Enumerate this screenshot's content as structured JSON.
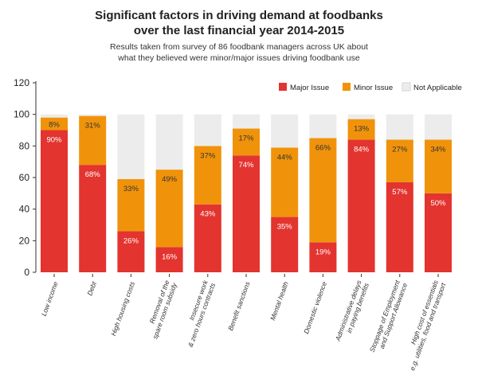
{
  "title_line1": "Significant factors in driving demand at foodbanks",
  "title_line2": "over the last financial year 2014-2015",
  "subtitle_line1": "Results taken from survey of 86 foodbank managers across UK about",
  "subtitle_line2": "what they believed were minor/major issues driving foodbank use",
  "colors": {
    "major": "#e3342f",
    "minor": "#f0930b",
    "na": "#ececec",
    "axis": "#333333"
  },
  "chart_data": {
    "type": "bar",
    "stacked": true,
    "ylim": [
      0,
      120
    ],
    "yticks": [
      0,
      20,
      40,
      60,
      80,
      100,
      120
    ],
    "legend": [
      {
        "name": "Major Issue",
        "color": "#e3342f"
      },
      {
        "name": "Minor Issue",
        "color": "#f0930b"
      },
      {
        "name": "Not Applicable",
        "color": "#ececec"
      }
    ],
    "legend_position": "top-right",
    "categories": [
      [
        "Low income"
      ],
      [
        "Debt"
      ],
      [
        "High housing costs"
      ],
      [
        "Removal of the",
        "spare room subsidy"
      ],
      [
        "Insecure work",
        "& zero hours contracts"
      ],
      [
        "Benefit sanctions"
      ],
      [
        "Mental health"
      ],
      [
        "Domestic violence"
      ],
      [
        "Administrative delays",
        "in paying benefits"
      ],
      [
        "Stoppage of Employment",
        "and Support Allowance"
      ],
      [
        "High cost of essentials",
        "e.g. utilities, food and transport"
      ]
    ],
    "series": [
      {
        "name": "Major Issue",
        "values": [
          90,
          68,
          26,
          16,
          43,
          74,
          35,
          19,
          84,
          57,
          50
        ],
        "labels": [
          "90%",
          "68%",
          "26%",
          "16%",
          "43%",
          "74%",
          "35%",
          "19%",
          "84%",
          "57%",
          "50%"
        ]
      },
      {
        "name": "Minor Issue",
        "values": [
          8,
          31,
          33,
          49,
          37,
          17,
          44,
          66,
          13,
          27,
          34
        ],
        "labels": [
          "8%",
          "31%",
          "33%",
          "49%",
          "37%",
          "17%",
          "44%",
          "66%",
          "13%",
          "27%",
          "34%"
        ]
      },
      {
        "name": "Not Applicable",
        "values": [
          2,
          1,
          41,
          35,
          20,
          9,
          21,
          15,
          3,
          16,
          16
        ]
      }
    ]
  }
}
